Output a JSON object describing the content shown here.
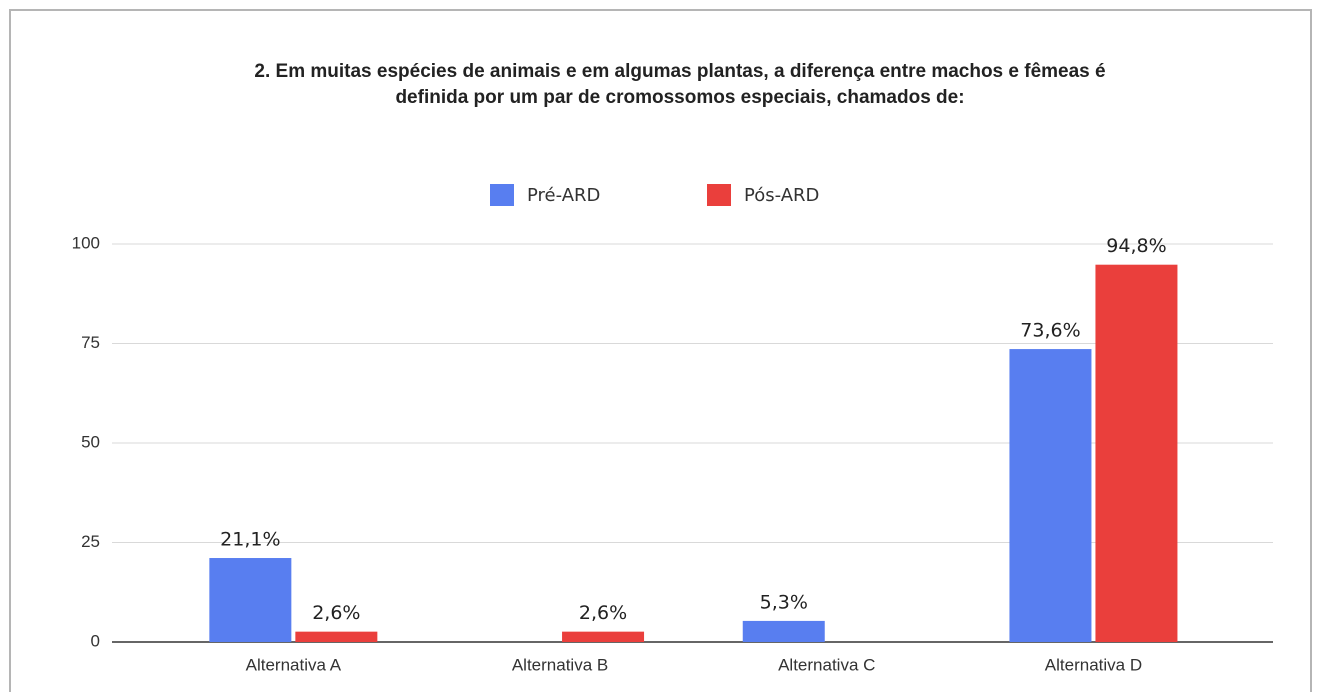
{
  "chart_data": {
    "type": "bar",
    "title": [
      "2. Em muitas espécies de animais e em algumas plantas, a diferença entre machos e fêmeas é",
      "definida por um par de cromossomos especiais, chamados de:"
    ],
    "categories": [
      "Alternativa A",
      "Alternativa B",
      "Alternativa C",
      "Alternativa D"
    ],
    "series": [
      {
        "name": "Pré-ARD",
        "color": "#587ef0",
        "values": [
          21.1,
          0,
          5.3,
          73.6
        ],
        "value_labels": [
          "21,1%",
          null,
          "5,3%",
          "73,6%"
        ]
      },
      {
        "name": "Pós-ARD",
        "color": "#ea3f3c",
        "values": [
          2.6,
          2.6,
          0,
          94.8
        ],
        "value_labels": [
          "2,6%",
          "2,6%",
          null,
          "94,8%"
        ]
      }
    ],
    "ylim": [
      0,
      100
    ],
    "yticks": [
      0,
      25,
      50,
      75,
      100
    ],
    "grid": true,
    "legend": "top"
  }
}
